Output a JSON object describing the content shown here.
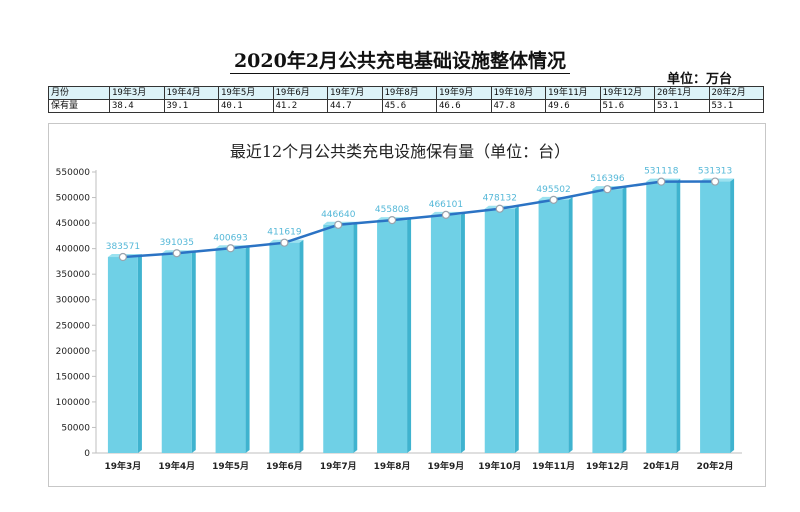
{
  "title": "2020年2月公共充电基础设施整体情况",
  "unit_label": "单位：万台",
  "table": {
    "headers": [
      "月份",
      "19年3月",
      "19年4月",
      "19年5月",
      "19年6月",
      "19年7月",
      "19年8月",
      "19年9月",
      "19年10月",
      "19年11月",
      "19年12月",
      "20年1月",
      "20年2月"
    ],
    "row_label": "保有量",
    "values": [
      "38.4",
      "39.1",
      "40.1",
      "41.2",
      "44.7",
      "45.6",
      "46.6",
      "47.8",
      "49.6",
      "51.6",
      "53.1",
      "53.1"
    ]
  },
  "chart_data": {
    "type": "bar",
    "title": "最近12个月公共类充电设施保有量（单位：台）",
    "categories": [
      "19年3月",
      "19年4月",
      "19年5月",
      "19年6月",
      "19年7月",
      "19年8月",
      "19年9月",
      "19年10月",
      "19年11月",
      "19年12月",
      "20年1月",
      "20年2月"
    ],
    "series": [
      {
        "type": "bar",
        "values": [
          383571,
          391035,
          400693,
          411619,
          446640,
          455808,
          466101,
          478132,
          495502,
          516396,
          531118,
          531313
        ]
      },
      {
        "type": "line",
        "values": [
          383571,
          391035,
          400693,
          411619,
          446640,
          455808,
          466101,
          478132,
          495502,
          516396,
          531118,
          531313
        ]
      }
    ],
    "data_labels": [
      "383571",
      "391035",
      "400693",
      "411619",
      "446640",
      "455808",
      "466101",
      "478132",
      "495502",
      "516396",
      "531118",
      "531313"
    ],
    "y_ticks": [
      "0",
      "50000",
      "100000",
      "150000",
      "200000",
      "250000",
      "300000",
      "350000",
      "400000",
      "450000",
      "500000",
      "550000"
    ],
    "ylim": [
      0,
      550000
    ],
    "xlabel": "",
    "ylabel": "",
    "grid": false,
    "colors": {
      "bar": "#6fd0e6",
      "bar_dark": "#3fb3cf",
      "line": "#2b73c4",
      "label": "#55b8d8",
      "axis_text": "#222222"
    }
  }
}
